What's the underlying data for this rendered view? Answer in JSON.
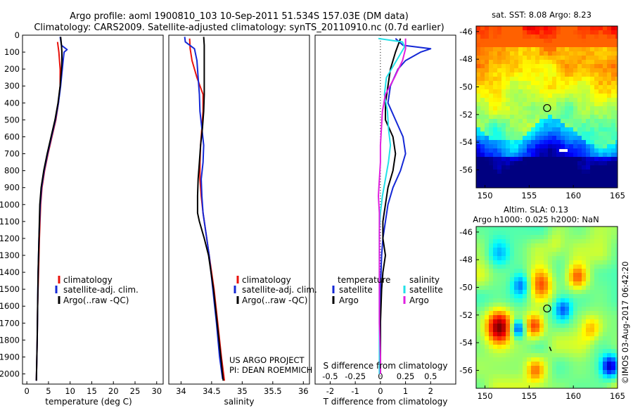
{
  "header": {
    "line1": "Argo profile: aoml 1900810_103 10-Sep-2011 51.534S 157.03E (DM data)",
    "line2": "Climatology: CARS2009. Satellite-adjusted climatology: synTS_20110910.nc (0.7d earlier)"
  },
  "colors": {
    "climatology": "#e8120c",
    "satellite": "#1428d6",
    "argo": "#000000",
    "sat_salinity": "#22e0e8",
    "argo_salinity": "#e020e0"
  },
  "depth_axis": {
    "ticks": [
      0,
      100,
      200,
      300,
      400,
      500,
      600,
      700,
      800,
      900,
      1000,
      1100,
      1200,
      1300,
      1400,
      1500,
      1600,
      1700,
      1800,
      1900,
      2000
    ],
    "range": [
      0,
      2060
    ]
  },
  "chart_data": [
    {
      "type": "line",
      "name": "temperature",
      "xlabel": "temperature (deg C)",
      "xlim": [
        -1,
        31.5
      ],
      "xticks": [
        0,
        5,
        10,
        15,
        20,
        25,
        30
      ],
      "legend": {
        "placement": "lower-left",
        "entries": [
          "climatology",
          "satellite-adj. clim.",
          "Argo(..raw -QC)"
        ]
      },
      "series": [
        {
          "name": "climatology",
          "depth": [
            40,
            100,
            200,
            300,
            400,
            500,
            600,
            700,
            800,
            900,
            1000,
            1200,
            1400,
            1600,
            1800,
            2040
          ],
          "values": [
            7.1,
            7.4,
            7.7,
            7.7,
            7.3,
            6.7,
            5.8,
            4.9,
            4.1,
            3.5,
            3.2,
            2.9,
            2.7,
            2.5,
            2.4,
            2.2
          ]
        },
        {
          "name": "satellite-adj. clim.",
          "depth": [
            10,
            60,
            85,
            100,
            150,
            200,
            300,
            400,
            500,
            600,
            700,
            800,
            900,
            1000,
            1200,
            1400,
            1600,
            1800,
            2040
          ],
          "values": [
            7.7,
            8.0,
            9.3,
            8.6,
            8.4,
            8.2,
            7.8,
            7.3,
            6.6,
            5.7,
            4.8,
            4.0,
            3.4,
            3.1,
            2.8,
            2.6,
            2.5,
            2.4,
            2.2
          ]
        },
        {
          "name": "Argo(..raw -QC)",
          "depth": [
            10,
            60,
            100,
            150,
            200,
            300,
            400,
            500,
            600,
            700,
            800,
            900,
            1000,
            1200,
            1400,
            1600,
            1800,
            2040
          ],
          "values": [
            7.8,
            8.0,
            8.1,
            8.1,
            8.0,
            7.7,
            7.2,
            6.5,
            5.6,
            4.7,
            3.9,
            3.3,
            3.0,
            2.8,
            2.6,
            2.5,
            2.4,
            2.2
          ]
        }
      ]
    },
    {
      "type": "line",
      "name": "salinity",
      "xlabel": "salinity",
      "xlim": [
        33.8,
        36.1
      ],
      "xticks": [
        34,
        34.5,
        35,
        35.5,
        36
      ],
      "xtick_labels": [
        "34",
        "34.5",
        "35",
        "35.5",
        "36"
      ],
      "legend": {
        "placement": "center-right",
        "entries": [
          "climatology",
          "satellite-adj. clim.",
          "Argo(..raw -QC)"
        ]
      },
      "series": [
        {
          "name": "climatology",
          "depth": [
            20,
            80,
            150,
            250,
            350,
            450,
            550,
            650,
            750,
            850,
            950,
            1050,
            1150,
            1300,
            1500,
            1700,
            1900,
            2040
          ],
          "values": [
            34.14,
            34.15,
            34.18,
            34.26,
            34.36,
            34.36,
            34.34,
            34.32,
            34.31,
            34.31,
            34.33,
            34.36,
            34.4,
            34.46,
            34.54,
            34.6,
            34.66,
            34.71
          ]
        },
        {
          "name": "satellite-adj. clim.",
          "depth": [
            10,
            40,
            80,
            150,
            250,
            350,
            450,
            550,
            650,
            750,
            850,
            950,
            1050,
            1150,
            1300,
            1500,
            1700,
            1900,
            2030
          ],
          "values": [
            34.06,
            34.07,
            34.22,
            34.26,
            34.28,
            34.3,
            34.31,
            34.34,
            34.37,
            34.36,
            34.33,
            34.34,
            34.36,
            34.4,
            34.46,
            34.52,
            34.58,
            34.63,
            34.68
          ]
        },
        {
          "name": "Argo(..raw -QC)",
          "depth": [
            10,
            60,
            150,
            250,
            350,
            450,
            550,
            650,
            750,
            850,
            950,
            1050,
            1100,
            1200,
            1300,
            1500,
            1700,
            1900,
            2040
          ],
          "values": [
            34.37,
            34.38,
            34.38,
            34.38,
            34.38,
            34.37,
            34.35,
            34.32,
            34.3,
            34.28,
            34.27,
            34.27,
            34.3,
            34.38,
            34.45,
            34.53,
            34.59,
            34.65,
            34.69
          ]
        }
      ],
      "annotation": {
        "line1": "US ARGO PROJECT",
        "line2": "PI: DEAN ROEMMICH"
      }
    },
    {
      "type": "line",
      "name": "difference-from-climatology",
      "xlabel": "T difference from climatology",
      "xlabel_top": "S difference from climatology",
      "xlim": [
        -2.6,
        3.0
      ],
      "xticks": [
        -2,
        -1,
        0,
        1,
        2
      ],
      "top_ticks": [
        -0.5,
        -0.25,
        0,
        0.25,
        0.5
      ],
      "top_tick_labels": [
        "-0.5",
        "-0.25",
        "0",
        "0.25",
        "0.5"
      ],
      "legend": {
        "placement": "lower-center",
        "group1_title": "temperature",
        "group2_title": "salinity",
        "entries": [
          "satellite",
          "Argo",
          "satellite",
          "Argo"
        ]
      },
      "series": [
        {
          "name": "temperature satellite",
          "depth": [
            20,
            60,
            80,
            100,
            150,
            200,
            300,
            400,
            500,
            600,
            700,
            800,
            900,
            1000,
            1100,
            1200,
            1300,
            1500,
            1700,
            1900,
            2000
          ],
          "values": [
            0.6,
            0.9,
            2.0,
            1.6,
            1.0,
            0.7,
            0.4,
            0.3,
            0.6,
            0.9,
            1.0,
            0.8,
            0.5,
            0.3,
            0.2,
            0.1,
            0.05,
            0.0,
            0.0,
            0.0,
            0.0
          ]
        },
        {
          "name": "temperature Argo",
          "depth": [
            20,
            100,
            200,
            300,
            400,
            500,
            600,
            700,
            800,
            900,
            1000,
            1100,
            1200,
            1300,
            1400,
            1500,
            1700,
            1900,
            2000
          ],
          "values": [
            0.8,
            0.6,
            0.4,
            0.3,
            0.2,
            0.2,
            0.5,
            0.6,
            0.5,
            0.3,
            0.2,
            0.1,
            0.1,
            0.2,
            0.1,
            0.05,
            0.0,
            0.0,
            0.0
          ]
        },
        {
          "name": "salinity satellite",
          "depth": [
            20,
            40,
            70,
            150,
            250,
            350,
            450,
            550,
            650,
            750,
            850,
            950,
            1050,
            1150,
            1300,
            1500,
            1700,
            1900,
            2000
          ],
          "values": [
            -0.02,
            0.22,
            0.24,
            0.16,
            0.06,
            0.04,
            0.07,
            0.08,
            0.1,
            0.08,
            0.05,
            0.02,
            0.0,
            -0.01,
            -0.01,
            -0.01,
            -0.01,
            -0.01,
            -0.01
          ]
        },
        {
          "name": "salinity Argo",
          "depth": [
            20,
            80,
            150,
            250,
            350,
            450,
            550,
            650,
            750,
            850,
            950,
            1050,
            1150,
            1300,
            1500,
            1700,
            1900,
            2000
          ],
          "values": [
            0.25,
            0.25,
            0.22,
            0.14,
            0.05,
            0.02,
            0.01,
            0.0,
            0.0,
            -0.01,
            -0.02,
            -0.01,
            -0.01,
            -0.01,
            -0.01,
            -0.01,
            0.0,
            0.0
          ]
        }
      ]
    },
    {
      "type": "heatmap",
      "name": "sat-sst-map",
      "title": "sat. SST: 8.08 Argo: 8.23",
      "xticks": [
        150,
        155,
        160,
        165
      ],
      "yticks": [
        -46,
        -48,
        -50,
        -52,
        -54,
        -56
      ],
      "xlim": [
        149,
        165
      ],
      "ylim": [
        -57.3,
        -45.6
      ],
      "marker": {
        "lon": 157.03,
        "lat": -51.53
      }
    },
    {
      "type": "heatmap",
      "name": "altim-sla-map",
      "title1": "Altim. SLA: 0.13",
      "title2": "Argo h1000: 0.025 h2000: NaN",
      "xticks": [
        150,
        155,
        160,
        165
      ],
      "yticks": [
        -46,
        -48,
        -50,
        -52,
        -54,
        -56
      ],
      "xlim": [
        149,
        165
      ],
      "ylim": [
        -57.3,
        -45.6
      ],
      "marker": {
        "lon": 157.03,
        "lat": -51.53
      }
    }
  ],
  "credit": "©IMOS 03-Aug-2017 06:42:20"
}
